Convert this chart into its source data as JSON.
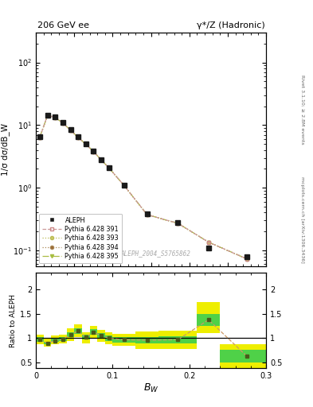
{
  "title_left": "206 GeV ee",
  "title_right": "γ*/Z (Hadronic)",
  "ylabel_main": "1/σ dσ/dB_W",
  "ylabel_ratio": "Ratio to ALEPH",
  "xlabel": "B_W",
  "right_label_top": "Rivet 3.1.10; ≥ 2.8M events",
  "right_label_bottom": "mcplots.cern.ch [arXiv:1306.3436]",
  "watermark": "ALEPH_2004_S5765862",
  "xlim": [
    0.0,
    0.3
  ],
  "ylim_main": [
    0.055,
    300
  ],
  "ylim_ratio": [
    0.38,
    2.35
  ],
  "bw_centers": [
    0.005,
    0.015,
    0.025,
    0.035,
    0.045,
    0.055,
    0.065,
    0.075,
    0.085,
    0.095,
    0.115,
    0.145,
    0.185,
    0.225,
    0.275
  ],
  "aleph_y": [
    6.5,
    14.5,
    13.5,
    11.0,
    8.5,
    6.5,
    5.0,
    3.8,
    2.8,
    2.1,
    1.1,
    0.38,
    0.28,
    0.11,
    0.08
  ],
  "pythia391": [
    6.4,
    14.3,
    13.2,
    10.8,
    8.3,
    6.35,
    4.95,
    3.78,
    2.78,
    2.08,
    1.08,
    0.37,
    0.27,
    0.135,
    0.073
  ],
  "ratio_y": [
    0.97,
    0.9,
    0.95,
    0.98,
    1.07,
    1.15,
    1.02,
    1.13,
    1.05,
    1.0,
    0.97,
    0.96,
    0.97,
    1.38,
    0.63
  ],
  "bw_edges": [
    0.0,
    0.01,
    0.02,
    0.03,
    0.04,
    0.05,
    0.06,
    0.07,
    0.08,
    0.09,
    0.1,
    0.13,
    0.16,
    0.21,
    0.24,
    0.3
  ],
  "green_lo": [
    0.93,
    0.87,
    0.92,
    0.95,
    1.02,
    1.09,
    0.97,
    1.07,
    0.99,
    0.94,
    0.91,
    0.9,
    0.9,
    1.25,
    0.5
  ],
  "green_hi": [
    1.03,
    0.93,
    0.99,
    1.02,
    1.13,
    1.21,
    1.07,
    1.19,
    1.11,
    1.06,
    1.03,
    1.02,
    1.04,
    1.5,
    0.76
  ],
  "yellow_lo": [
    0.88,
    0.82,
    0.87,
    0.89,
    0.94,
    1.02,
    0.9,
    1.01,
    0.93,
    0.88,
    0.85,
    0.78,
    0.78,
    1.1,
    0.38
  ],
  "yellow_hi": [
    1.08,
    0.99,
    1.05,
    1.08,
    1.2,
    1.28,
    1.13,
    1.25,
    1.17,
    1.12,
    1.09,
    1.14,
    1.16,
    1.75,
    0.88
  ],
  "data_color": "#1a1a1a",
  "pythia_line_color": "#cc9966",
  "pythia391_marker": "#cc9966",
  "pythia393_marker": "#cccc66",
  "pythia394_marker": "#996633",
  "pythia395_marker": "#99cc33",
  "pythia_dark": "#4a5a1a",
  "green_color": "#33cc55",
  "yellow_color": "#eeee00",
  "ratio_line_color": "#cc9966",
  "ratio_marker_color": "#4a5a1a"
}
